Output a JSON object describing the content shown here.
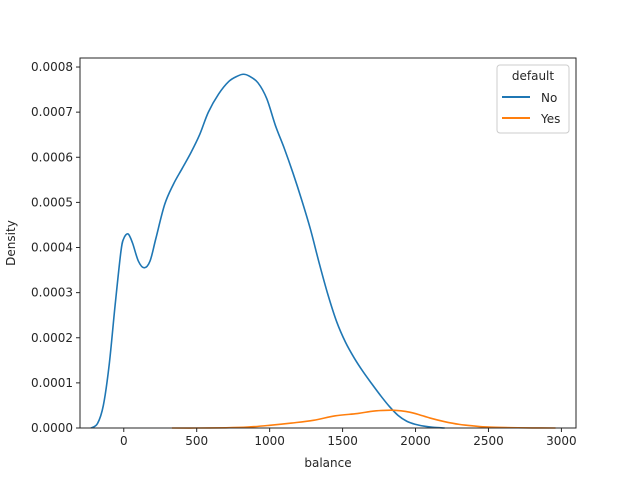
{
  "chart_data": {
    "type": "line",
    "title": "",
    "xlabel": "balance",
    "ylabel": "Density",
    "xlim": [
      -300,
      3100
    ],
    "ylim": [
      0,
      0.00082
    ],
    "x_ticks": [
      0,
      500,
      1000,
      1500,
      2000,
      2500,
      3000
    ],
    "x_tick_labels": [
      "0",
      "500",
      "1000",
      "1500",
      "2000",
      "2500",
      "3000"
    ],
    "y_ticks": [
      0,
      0.0001,
      0.0002,
      0.0003,
      0.0004,
      0.0005,
      0.0006,
      0.0007,
      0.0008
    ],
    "y_tick_labels": [
      "0.0000",
      "0.0001",
      "0.0002",
      "0.0003",
      "0.0004",
      "0.0005",
      "0.0006",
      "0.0007",
      "0.0008"
    ],
    "grid": false,
    "legend": {
      "title": "default",
      "position": "top-right"
    },
    "series": [
      {
        "name": "No",
        "color": "#1f77b4",
        "points": [
          [
            -225,
            0.0
          ],
          [
            -180,
            1e-05
          ],
          [
            -140,
            5e-05
          ],
          [
            -100,
            0.00014
          ],
          [
            -60,
            0.00027
          ],
          [
            -20,
            0.00039
          ],
          [
            0,
            0.00042
          ],
          [
            30,
            0.00043
          ],
          [
            60,
            0.00041
          ],
          [
            100,
            0.00037
          ],
          [
            140,
            0.000355
          ],
          [
            180,
            0.00037
          ],
          [
            220,
            0.00042
          ],
          [
            280,
            0.000495
          ],
          [
            340,
            0.00054
          ],
          [
            400,
            0.000575
          ],
          [
            460,
            0.00061
          ],
          [
            520,
            0.00065
          ],
          [
            580,
            0.0007
          ],
          [
            650,
            0.00074
          ],
          [
            720,
            0.000768
          ],
          [
            780,
            0.00078
          ],
          [
            820,
            0.000784
          ],
          [
            860,
            0.00078
          ],
          [
            920,
            0.000765
          ],
          [
            980,
            0.00073
          ],
          [
            1040,
            0.00067
          ],
          [
            1100,
            0.00062
          ],
          [
            1160,
            0.000565
          ],
          [
            1220,
            0.000505
          ],
          [
            1280,
            0.00044
          ],
          [
            1340,
            0.000365
          ],
          [
            1400,
            0.000295
          ],
          [
            1460,
            0.000235
          ],
          [
            1520,
            0.00019
          ],
          [
            1580,
            0.000155
          ],
          [
            1640,
            0.000125
          ],
          [
            1700,
            9.8e-05
          ],
          [
            1760,
            7.2e-05
          ],
          [
            1820,
            4.8e-05
          ],
          [
            1880,
            2.8e-05
          ],
          [
            1940,
            1.5e-05
          ],
          [
            2000,
            8e-06
          ],
          [
            2060,
            4e-06
          ],
          [
            2120,
            1.5e-06
          ],
          [
            2200,
            0.0
          ]
        ]
      },
      {
        "name": "Yes",
        "color": "#ff7f0e",
        "points": [
          [
            330,
            0.0
          ],
          [
            500,
            0.0
          ],
          [
            700,
            5e-07
          ],
          [
            850,
            2e-06
          ],
          [
            1000,
            6e-06
          ],
          [
            1150,
            1.1e-05
          ],
          [
            1300,
            1.7e-05
          ],
          [
            1450,
            2.7e-05
          ],
          [
            1600,
            3.2e-05
          ],
          [
            1700,
            3.7e-05
          ],
          [
            1780,
            3.9e-05
          ],
          [
            1840,
            3.95e-05
          ],
          [
            1900,
            3.8e-05
          ],
          [
            1960,
            3.5e-05
          ],
          [
            2020,
            3e-05
          ],
          [
            2100,
            2.2e-05
          ],
          [
            2200,
            1.4e-05
          ],
          [
            2300,
            8e-06
          ],
          [
            2400,
            4.5e-06
          ],
          [
            2500,
            2e-06
          ],
          [
            2650,
            8e-07
          ],
          [
            2800,
            2e-07
          ],
          [
            2960,
            0.0
          ]
        ]
      }
    ]
  }
}
